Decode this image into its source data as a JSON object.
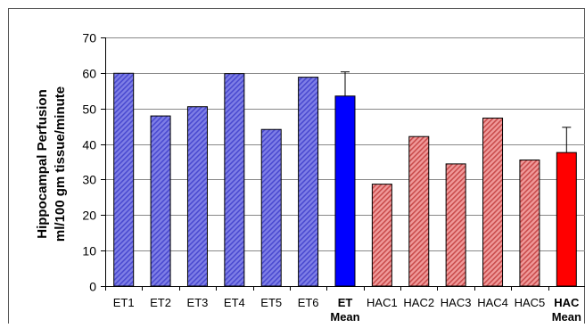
{
  "chart_data": {
    "type": "bar",
    "title": "",
    "xlabel": "",
    "ylabel_line1": "Hippocampal Perfusion",
    "ylabel_line2": "ml/100 gm tissue/minute",
    "ylim": [
      0,
      70
    ],
    "yticks": [
      "0",
      "10",
      "20",
      "30",
      "40",
      "50",
      "60",
      "70"
    ],
    "grid": true,
    "legend": "none",
    "categories": [
      {
        "line1": "ET1",
        "line2": "",
        "bold": false
      },
      {
        "line1": "ET2",
        "line2": "",
        "bold": false
      },
      {
        "line1": "ET3",
        "line2": "",
        "bold": false
      },
      {
        "line1": "ET4",
        "line2": "",
        "bold": false
      },
      {
        "line1": "ET5",
        "line2": "",
        "bold": false
      },
      {
        "line1": "ET6",
        "line2": "",
        "bold": false
      },
      {
        "line1": "ET",
        "line2": "Mean",
        "bold": true
      },
      {
        "line1": "HAC1",
        "line2": "",
        "bold": false
      },
      {
        "line1": "HAC2",
        "line2": "",
        "bold": false
      },
      {
        "line1": "HAC3",
        "line2": "",
        "bold": false
      },
      {
        "line1": "HAC4",
        "line2": "",
        "bold": false
      },
      {
        "line1": "HAC5",
        "line2": "",
        "bold": false
      },
      {
        "line1": "HAC",
        "line2": "Mean",
        "bold": true
      }
    ],
    "values": [
      59.9,
      47.9,
      50.5,
      59.8,
      44.1,
      58.8,
      53.5,
      28.7,
      42.1,
      34.4,
      47.3,
      35.5,
      37.6
    ],
    "error_bars": [
      null,
      null,
      null,
      null,
      null,
      null,
      6.8,
      null,
      null,
      null,
      null,
      null,
      7.1
    ],
    "bar_styles": [
      "et-hatch",
      "et-hatch",
      "et-hatch",
      "et-hatch",
      "et-hatch",
      "et-hatch",
      "et-mean",
      "hac-hatch",
      "hac-hatch",
      "hac-hatch",
      "hac-hatch",
      "hac-hatch",
      "hac-mean"
    ],
    "colors": {
      "et_hatch_fill": "#7f7fe6",
      "et_hatch_stripe": "#4a4ad0",
      "et_mean": "#0000ff",
      "hac_hatch_fill": "#f09a9a",
      "hac_hatch_stripe": "#c94c4c",
      "hac_mean": "#ff0000",
      "bar_outline": "#000000",
      "grid": "#888888",
      "axis": "#000000",
      "frame": "#555555"
    }
  }
}
